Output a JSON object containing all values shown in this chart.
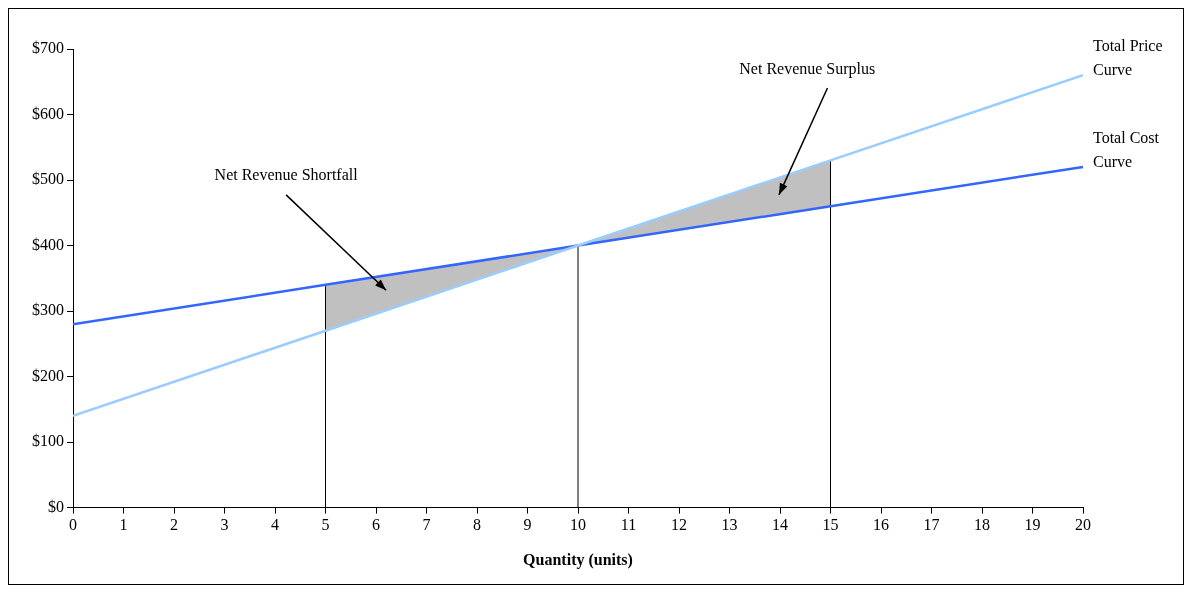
{
  "chart_data": {
    "type": "line",
    "xlabel": "Quantity (units)",
    "x": [
      0,
      5,
      10,
      15,
      20
    ],
    "series": [
      {
        "name": "Total Price Curve",
        "color": "#99ccff",
        "values": [
          140,
          270,
          400,
          530,
          660
        ]
      },
      {
        "name": "Total Cost Curve",
        "color": "#3366ff",
        "values": [
          280,
          340,
          400,
          460,
          520
        ],
        "lower": [
          null,
          270,
          400,
          460,
          null
        ],
        "upper": [
          null,
          340,
          400,
          530,
          null
        ]
      }
    ],
    "xlim": [
      0,
      20
    ],
    "xticks": [
      0,
      1,
      2,
      3,
      4,
      5,
      6,
      7,
      8,
      9,
      10,
      11,
      12,
      13,
      14,
      15,
      16,
      17,
      18,
      19,
      20
    ],
    "ylim": [
      0,
      700
    ],
    "yticks": [
      {
        "value": 0,
        "label": "$0"
      },
      {
        "value": 100,
        "label": "$100"
      },
      {
        "value": 200,
        "label": "$200"
      },
      {
        "value": 300,
        "label": "$300"
      },
      {
        "value": 400,
        "label": "$400"
      },
      {
        "value": 500,
        "label": "$500"
      },
      {
        "value": 600,
        "label": "$600"
      },
      {
        "value": 700,
        "label": "$700"
      }
    ],
    "ref_lines": [
      {
        "axis": "x",
        "value": 5,
        "color": "#000000"
      },
      {
        "axis": "x",
        "value": 10,
        "color": "#000000"
      },
      {
        "axis": "x",
        "value": 15,
        "color": "#000000"
      }
    ],
    "annotations": [
      "Net Revenue Shortfall",
      "Net Revenue Surplus"
    ],
    "grid": false,
    "legend": false,
    "marker": "none",
    "line_style": "solid"
  }
}
